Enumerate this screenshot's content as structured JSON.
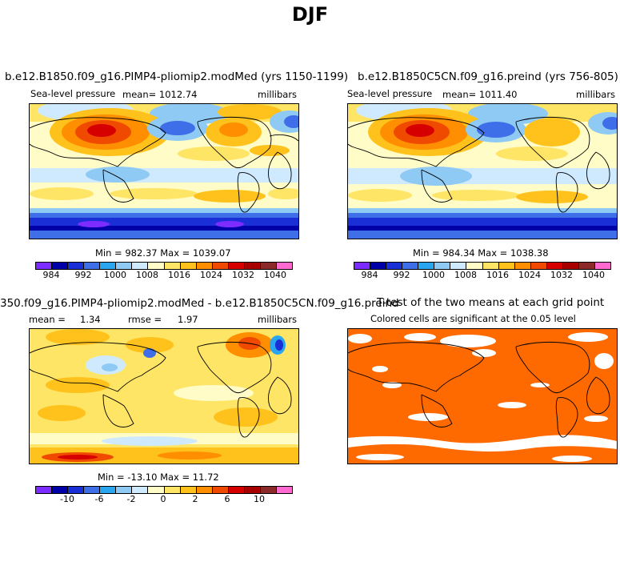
{
  "page_title": "DJF",
  "panels": {
    "p1": {
      "title": "b.e12.B1850.f09_g16.PIMP4-pliomip2.modMed (yrs 1150-1199)",
      "variable": "Sea-level pressure",
      "mean": "mean= 1012.74",
      "units": "millibars",
      "minmax": "Min = 982.37 Max = 1039.07",
      "ticks": [
        "984",
        "992",
        "1000",
        "1008",
        "1016",
        "1024",
        "1032",
        "1040"
      ]
    },
    "p2": {
      "title": "b.e12.B1850C5CN.f09_g16.preind (yrs 756-805)",
      "variable": "Sea-level pressure",
      "mean": "mean= 1011.40",
      "units": "millibars",
      "minmax": "Min = 984.34 Max = 1038.38",
      "ticks": [
        "984",
        "992",
        "1000",
        "1008",
        "1016",
        "1024",
        "1032",
        "1040"
      ]
    },
    "p3": {
      "title": "350.f09_g16.PIMP4-pliomip2.modMed - b.e12.B1850C5CN.f09_g16.preind",
      "mean_label": "mean =",
      "mean_value": "1.34",
      "rmse_label": "rmse =",
      "rmse_value": "1.97",
      "units": "millibars",
      "minmax": "Min = -13.10 Max =  11.72",
      "ticks": [
        "-10",
        "-6",
        "-2",
        "0",
        "2",
        "6",
        "10"
      ]
    },
    "p4": {
      "title": "T-test of the two means at each grid point",
      "subtitle": "Colored cells are significant at the 0.05 level",
      "sig_color": "#ff6a00"
    }
  },
  "colorbar_abs": [
    "#7d2cff",
    "#0000a8",
    "#1a2fd6",
    "#3e6ee8",
    "#2aa6f0",
    "#8fcaf5",
    "#cfe9ff",
    "#fffcc8",
    "#ffe566",
    "#ffc21c",
    "#ff8f00",
    "#f04a00",
    "#d60000",
    "#a80000",
    "#8c2a2a",
    "#ff6ad0"
  ],
  "colorbar_diff": [
    "#7d2cff",
    "#0000a8",
    "#1a2fd6",
    "#3e6ee8",
    "#2aa6f0",
    "#8fcaf5",
    "#cfe9ff",
    "#fffcc8",
    "#ffe566",
    "#ffc21c",
    "#ff8f00",
    "#f04a00",
    "#d60000",
    "#a80000",
    "#8c2a2a",
    "#ff6ad0"
  ]
}
